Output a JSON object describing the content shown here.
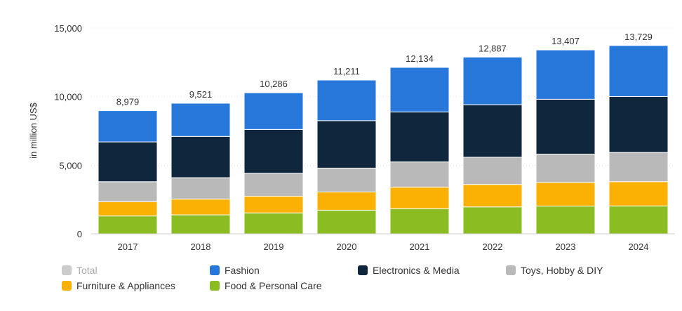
{
  "chart_data": {
    "type": "bar",
    "stacked": true,
    "categories": [
      "2017",
      "2018",
      "2019",
      "2020",
      "2021",
      "2022",
      "2023",
      "2024"
    ],
    "totals": [
      8979,
      9521,
      10286,
      11211,
      12134,
      12887,
      13407,
      13729
    ],
    "total_labels": [
      "8,979",
      "9,521",
      "10,286",
      "11,211",
      "12,134",
      "12,887",
      "13,407",
      "13,729"
    ],
    "series": [
      {
        "name": "Food & Personal Care",
        "color": "#8bbc21",
        "values": [
          1300,
          1380,
          1520,
          1720,
          1830,
          1960,
          2020,
          2030
        ]
      },
      {
        "name": "Furniture & Appliances",
        "color": "#fbb104",
        "values": [
          1040,
          1150,
          1220,
          1330,
          1570,
          1640,
          1720,
          1770
        ]
      },
      {
        "name": "Toys, Hobby & DIY",
        "color": "#b9b9b9",
        "values": [
          1460,
          1560,
          1670,
          1740,
          1840,
          1980,
          2070,
          2130
        ]
      },
      {
        "name": "Electronics & Media",
        "color": "#10263d",
        "values": [
          2900,
          3010,
          3200,
          3460,
          3640,
          3830,
          4000,
          4080
        ]
      },
      {
        "name": "Fashion",
        "color": "#2878dc",
        "values": [
          2279,
          2421,
          2676,
          2961,
          3254,
          3477,
          3597,
          3719
        ]
      }
    ],
    "ylabel": "in million US$",
    "ylim": [
      0,
      15000
    ],
    "yticks": [
      0,
      5000,
      10000,
      15000
    ],
    "ytick_labels": [
      "0",
      "5,000",
      "10,000",
      "15,000"
    ],
    "grid": true,
    "legend_position": "bottom",
    "legend": [
      {
        "name": "Total",
        "color": "#cccccc",
        "muted": true
      },
      {
        "name": "Fashion",
        "color": "#2878dc"
      },
      {
        "name": "Electronics & Media",
        "color": "#10263d"
      },
      {
        "name": "Toys, Hobby & DIY",
        "color": "#b9b9b9"
      },
      {
        "name": "Furniture & Appliances",
        "color": "#fbb104"
      },
      {
        "name": "Food & Personal Care",
        "color": "#8bbc21"
      }
    ]
  }
}
